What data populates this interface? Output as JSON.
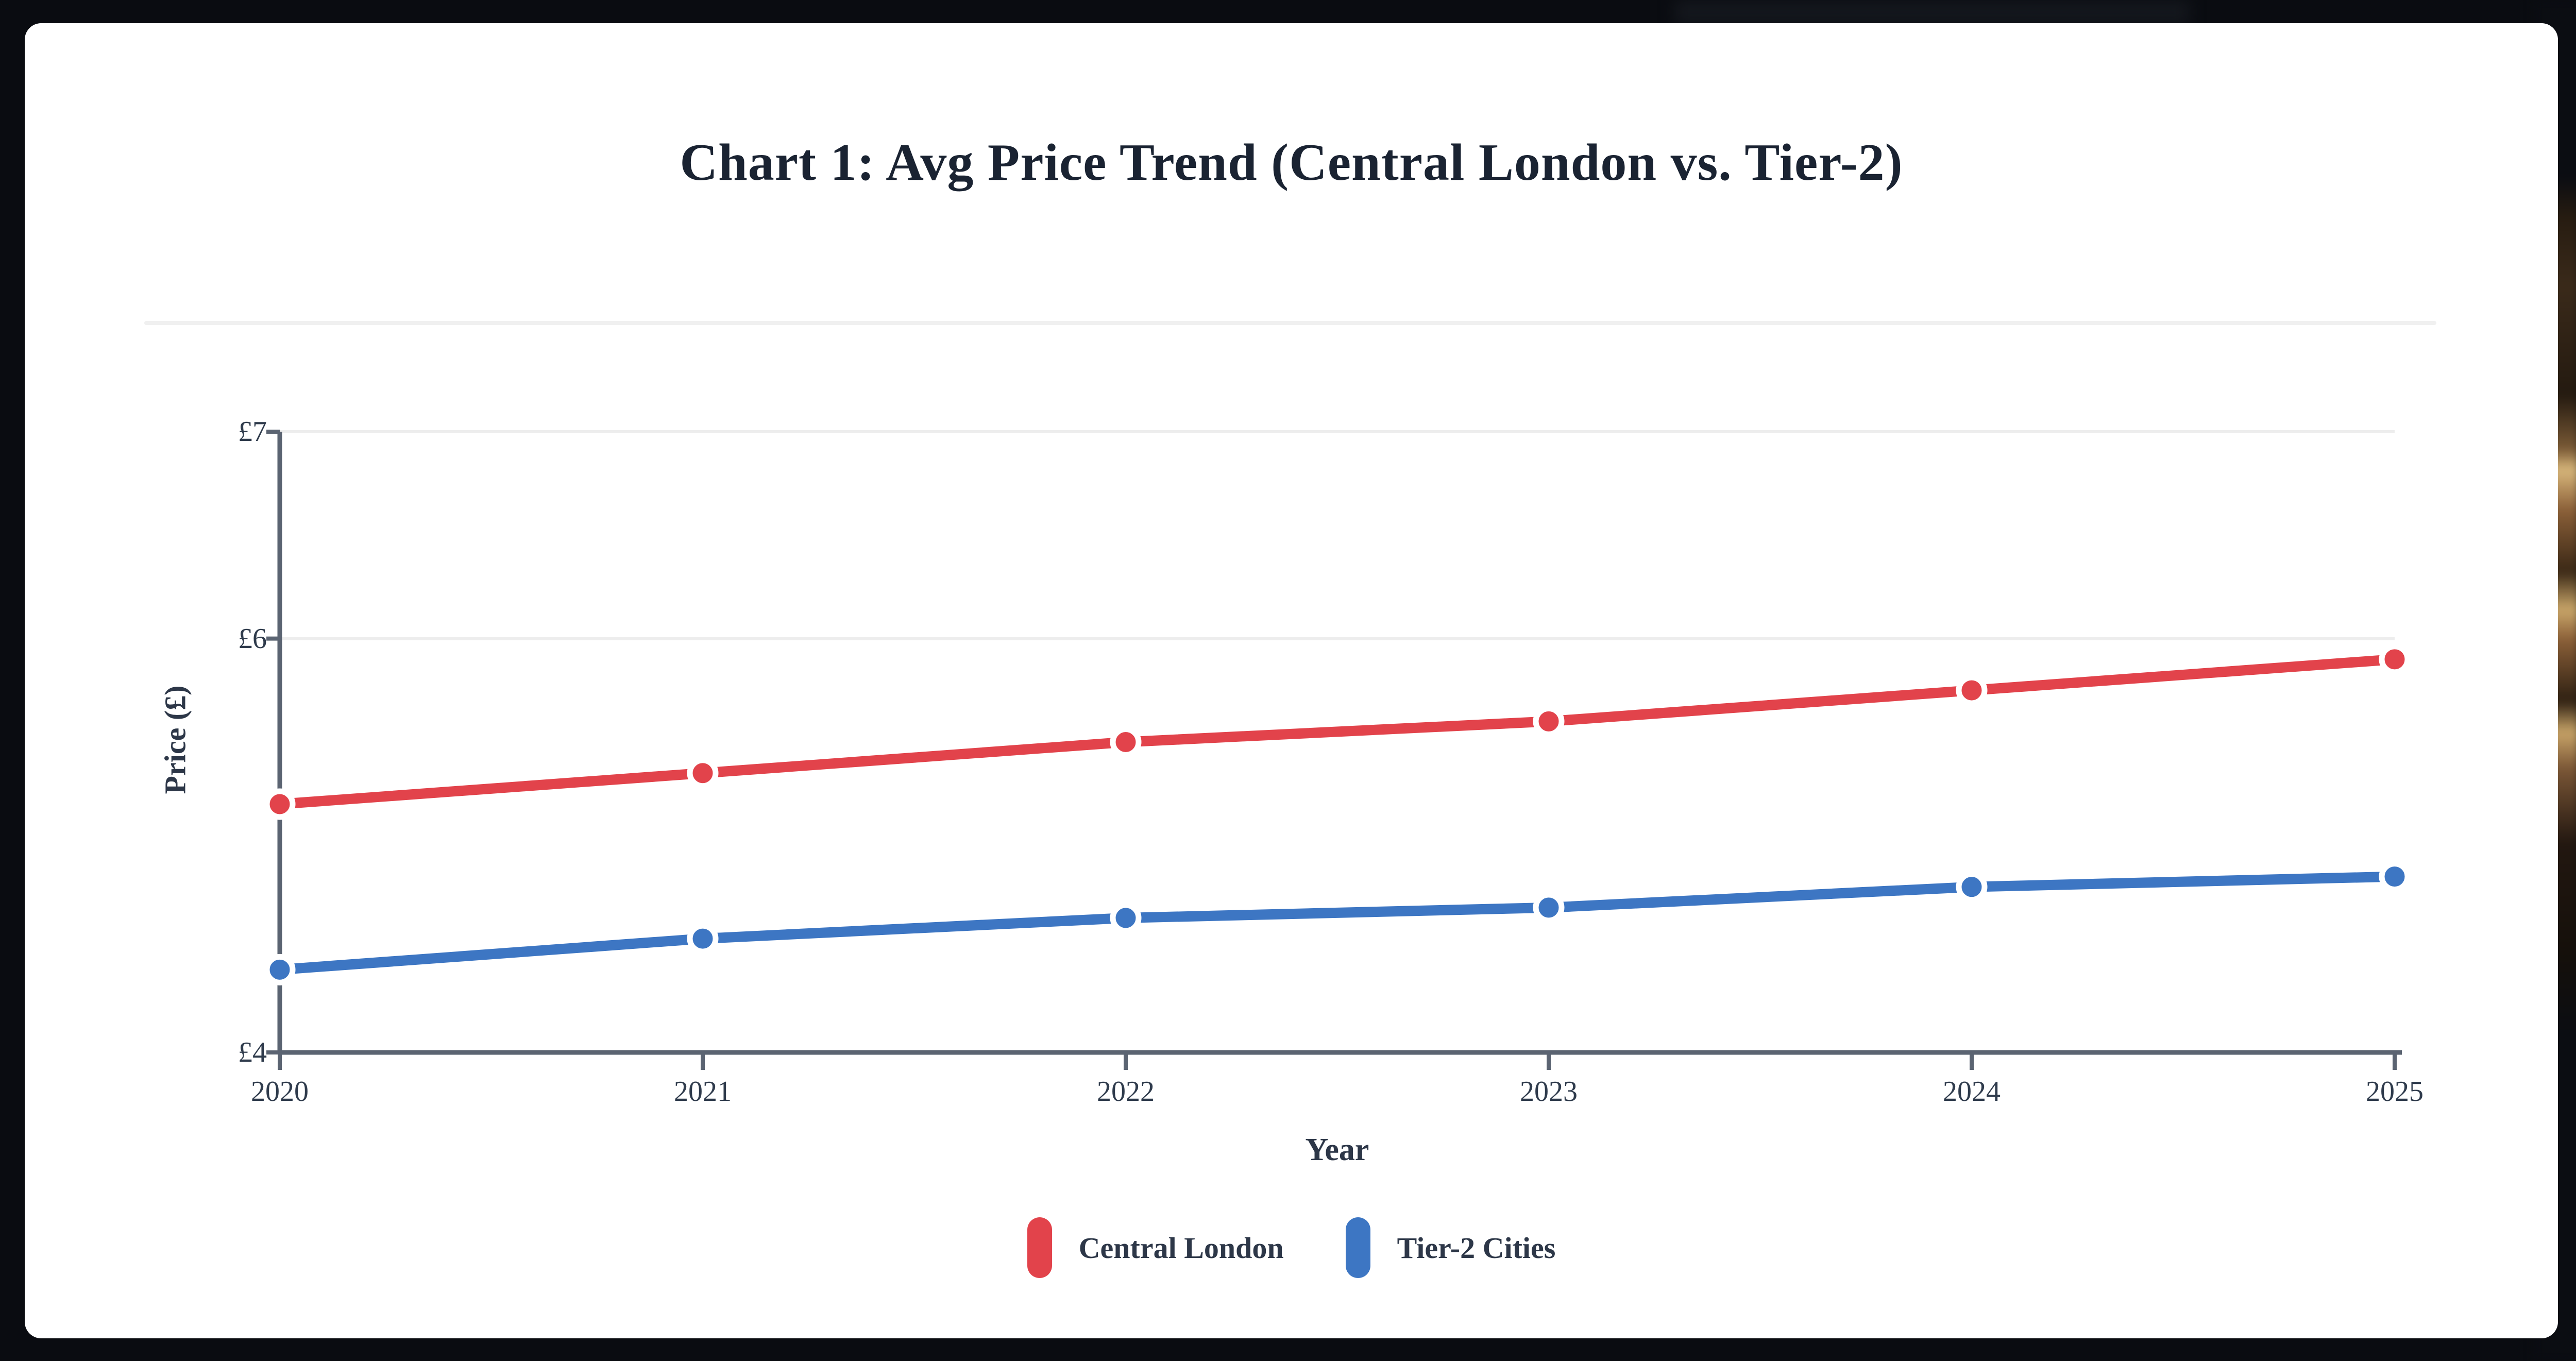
{
  "card": {
    "title": "Chart 1: Avg Price Trend (Central London vs. Tier-2)"
  },
  "chart_data": {
    "type": "line",
    "title": "Chart 1: Avg Price Trend (Central London vs. Tier-2)",
    "xlabel": "Year",
    "ylabel": "Price (£)",
    "categories": [
      "2020",
      "2021",
      "2022",
      "2023",
      "2024",
      "2025"
    ],
    "series": [
      {
        "name": "Central London",
        "color": "#e2434b",
        "values": [
          5.2,
          5.35,
          5.5,
          5.6,
          5.75,
          5.9
        ]
      },
      {
        "name": "Tier-2 Cities",
        "color": "#3d76c3",
        "values": [
          4.4,
          4.55,
          4.65,
          4.7,
          4.8,
          4.85
        ]
      }
    ],
    "ylim": [
      4,
      7
    ],
    "y_ticks": [
      {
        "label": "£7",
        "value": 7
      },
      {
        "label": "£6",
        "value": 6
      },
      {
        "label": "£4",
        "value": 4
      }
    ],
    "gridlines_at": [
      7,
      6
    ],
    "grid": "horizontal-only",
    "legend_position": "bottom",
    "theme": {
      "page_background": "#0a0c11",
      "card_background": "#ffffff",
      "axis_color": "#5b6472",
      "gridline_color": "#ededed",
      "tick_text_color": "#2f3b4c",
      "title_text_color": "#1a2332"
    }
  }
}
